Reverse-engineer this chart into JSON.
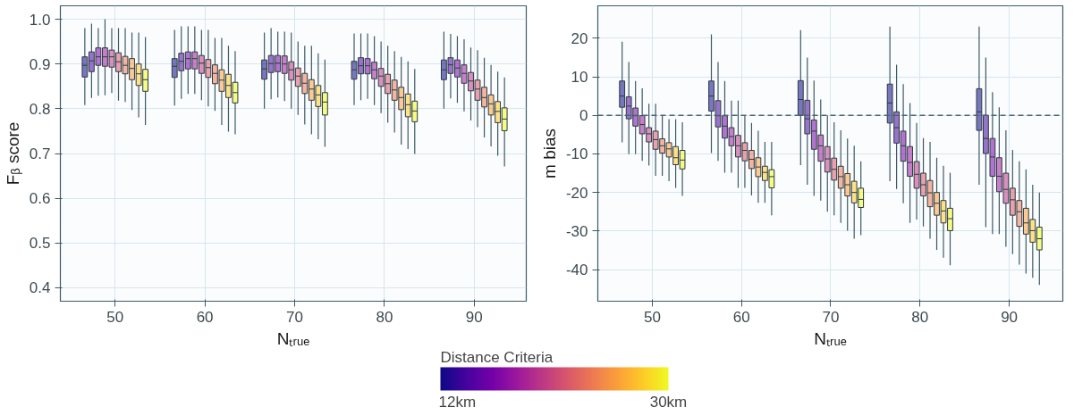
{
  "chart_data": [
    {
      "type": "box",
      "xlabel": "Nₜᵣᵤₑ",
      "ylabel": "Fᵦ score",
      "xlim": [
        43.9,
        95.8
      ],
      "ylim": [
        0.37,
        1.03
      ],
      "xticks": [
        50,
        60,
        70,
        80,
        90
      ],
      "yticks": [
        0.4,
        0.5,
        0.6,
        0.7,
        0.8,
        0.9,
        {
          "value": 1,
          "label": "1.0"
        }
      ],
      "grid": true,
      "clabel": "Distance Criteria",
      "clim": [
        12,
        30
      ],
      "cticks": [
        {
          "value": 12,
          "label": "12km"
        },
        {
          "value": 30,
          "label": "30km"
        }
      ],
      "series": [
        {
          "color": "#0d0887",
          "x": [
            50,
            60,
            70,
            80,
            90
          ],
          "boxes": [
            {
              "low": 0.808,
              "q1": 0.871,
              "median": 0.897,
              "q3": 0.916,
              "high": 0.98
            },
            {
              "low": 0.807,
              "q1": 0.87,
              "median": 0.895,
              "q3": 0.912,
              "high": 0.976
            },
            {
              "low": 0.8,
              "q1": 0.866,
              "median": 0.889,
              "q3": 0.909,
              "high": 0.97
            },
            {
              "low": 0.808,
              "q1": 0.866,
              "median": 0.887,
              "q3": 0.906,
              "high": 0.968
            },
            {
              "low": 0.8,
              "q1": 0.865,
              "median": 0.887,
              "q3": 0.909,
              "high": 0.972
            }
          ]
        },
        {
          "color": "#46039f",
          "x": [
            50,
            60,
            70,
            80,
            90
          ],
          "boxes": [
            {
              "low": 0.824,
              "q1": 0.883,
              "median": 0.907,
              "q3": 0.927,
              "high": 0.99
            },
            {
              "low": 0.822,
              "q1": 0.885,
              "median": 0.906,
              "q3": 0.924,
              "high": 0.984
            },
            {
              "low": 0.821,
              "q1": 0.881,
              "median": 0.901,
              "q3": 0.919,
              "high": 0.98
            },
            {
              "low": 0.819,
              "q1": 0.878,
              "median": 0.896,
              "q3": 0.914,
              "high": 0.968
            },
            {
              "low": 0.823,
              "q1": 0.879,
              "median": 0.898,
              "q3": 0.914,
              "high": 0.967
            }
          ]
        },
        {
          "color": "#7201a8",
          "x": [
            50,
            60,
            70,
            80,
            90
          ],
          "boxes": [
            {
              "low": 0.829,
              "q1": 0.897,
              "median": 0.916,
              "q3": 0.936,
              "high": 0.98
            },
            {
              "low": 0.833,
              "q1": 0.889,
              "median": 0.912,
              "q3": 0.927,
              "high": 0.984
            },
            {
              "low": 0.825,
              "q1": 0.883,
              "median": 0.902,
              "q3": 0.919,
              "high": 0.972
            },
            {
              "low": 0.822,
              "q1": 0.878,
              "median": 0.896,
              "q3": 0.912,
              "high": 0.968
            },
            {
              "low": 0.813,
              "q1": 0.871,
              "median": 0.891,
              "q3": 0.909,
              "high": 0.962
            }
          ]
        },
        {
          "color": "#9c179e",
          "x": [
            50,
            60,
            70,
            80,
            90
          ],
          "boxes": [
            {
              "low": 0.83,
              "q1": 0.895,
              "median": 0.916,
              "q3": 0.936,
              "high": 1.0
            },
            {
              "low": 0.833,
              "q1": 0.889,
              "median": 0.912,
              "q3": 0.927,
              "high": 0.984
            },
            {
              "low": 0.817,
              "q1": 0.879,
              "median": 0.9,
              "q3": 0.918,
              "high": 0.972
            },
            {
              "low": 0.808,
              "q1": 0.867,
              "median": 0.887,
              "q3": 0.904,
              "high": 0.962
            },
            {
              "low": 0.794,
              "q1": 0.857,
              "median": 0.879,
              "q3": 0.898,
              "high": 0.955
            }
          ]
        },
        {
          "color": "#bd3786",
          "x": [
            50,
            60,
            70,
            80,
            90
          ],
          "boxes": [
            {
              "low": 0.835,
              "q1": 0.893,
              "median": 0.916,
              "q3": 0.931,
              "high": 0.98
            },
            {
              "low": 0.819,
              "q1": 0.879,
              "median": 0.902,
              "q3": 0.919,
              "high": 0.976
            },
            {
              "low": 0.8,
              "q1": 0.864,
              "median": 0.887,
              "q3": 0.905,
              "high": 0.97
            },
            {
              "low": 0.79,
              "q1": 0.85,
              "median": 0.873,
              "q3": 0.89,
              "high": 0.95
            },
            {
              "low": 0.774,
              "q1": 0.84,
              "median": 0.862,
              "q3": 0.881,
              "high": 0.937
            }
          ]
        },
        {
          "color": "#d8576b",
          "x": [
            50,
            60,
            70,
            80,
            90
          ],
          "boxes": [
            {
              "low": 0.818,
              "q1": 0.883,
              "median": 0.905,
              "q3": 0.925,
              "high": 0.98
            },
            {
              "low": 0.805,
              "q1": 0.87,
              "median": 0.892,
              "q3": 0.91,
              "high": 0.976
            },
            {
              "low": 0.786,
              "q1": 0.85,
              "median": 0.873,
              "q3": 0.891,
              "high": 0.95
            },
            {
              "low": 0.769,
              "q1": 0.834,
              "median": 0.856,
              "q3": 0.877,
              "high": 0.941
            },
            {
              "low": 0.759,
              "q1": 0.819,
              "median": 0.844,
              "q3": 0.864,
              "high": 0.931
            }
          ]
        },
        {
          "color": "#ed7953",
          "x": [
            50,
            60,
            70,
            80,
            90
          ],
          "boxes": [
            {
              "low": 0.815,
              "q1": 0.878,
              "median": 0.897,
              "q3": 0.917,
              "high": 0.98
            },
            {
              "low": 0.795,
              "q1": 0.856,
              "median": 0.879,
              "q3": 0.898,
              "high": 0.958
            },
            {
              "low": 0.765,
              "q1": 0.834,
              "median": 0.857,
              "q3": 0.879,
              "high": 0.941
            },
            {
              "low": 0.747,
              "q1": 0.819,
              "median": 0.842,
              "q3": 0.864,
              "high": 0.929
            },
            {
              "low": 0.736,
              "q1": 0.804,
              "median": 0.825,
              "q3": 0.848,
              "high": 0.914
            }
          ]
        },
        {
          "color": "#fb9f3a",
          "x": [
            50,
            60,
            70,
            80,
            90
          ],
          "boxes": [
            {
              "low": 0.797,
              "q1": 0.865,
              "median": 0.89,
              "q3": 0.912,
              "high": 0.97
            },
            {
              "low": 0.764,
              "q1": 0.839,
              "median": 0.864,
              "q3": 0.887,
              "high": 0.958
            },
            {
              "low": 0.743,
              "q1": 0.819,
              "median": 0.844,
              "q3": 0.865,
              "high": 0.941
            },
            {
              "low": 0.72,
              "q1": 0.798,
              "median": 0.825,
              "q3": 0.848,
              "high": 0.916
            },
            {
              "low": 0.716,
              "q1": 0.786,
              "median": 0.811,
              "q3": 0.831,
              "high": 0.898
            }
          ]
        },
        {
          "color": "#fdca26",
          "x": [
            50,
            60,
            70,
            80,
            90
          ],
          "boxes": [
            {
              "low": 0.781,
              "q1": 0.852,
              "median": 0.878,
              "q3": 0.9,
              "high": 0.97
            },
            {
              "low": 0.749,
              "q1": 0.825,
              "median": 0.852,
              "q3": 0.877,
              "high": 0.941
            },
            {
              "low": 0.732,
              "q1": 0.805,
              "median": 0.831,
              "q3": 0.852,
              "high": 0.924
            },
            {
              "low": 0.71,
              "q1": 0.782,
              "median": 0.809,
              "q3": 0.833,
              "high": 0.906
            },
            {
              "low": 0.695,
              "q1": 0.769,
              "median": 0.794,
              "q3": 0.816,
              "high": 0.883
            }
          ]
        },
        {
          "color": "#f0f921",
          "x": [
            50,
            60,
            70,
            80,
            90
          ],
          "boxes": [
            {
              "low": 0.764,
              "q1": 0.839,
              "median": 0.865,
              "q3": 0.888,
              "high": 0.96
            },
            {
              "low": 0.743,
              "q1": 0.813,
              "median": 0.836,
              "q3": 0.859,
              "high": 0.929
            },
            {
              "low": 0.715,
              "q1": 0.786,
              "median": 0.815,
              "q3": 0.836,
              "high": 0.91
            },
            {
              "low": 0.699,
              "q1": 0.771,
              "median": 0.795,
              "q3": 0.817,
              "high": 0.889
            },
            {
              "low": 0.671,
              "q1": 0.751,
              "median": 0.777,
              "q3": 0.802,
              "high": 0.87
            }
          ]
        }
      ]
    },
    {
      "type": "box",
      "xlabel": "Nₜᵣᵤₑ",
      "ylabel": "m bias",
      "xlim": [
        43.9,
        96.0
      ],
      "ylim": [
        -48.2,
        28.4
      ],
      "xticks": [
        50,
        60,
        70,
        80,
        90
      ],
      "yticks": [
        -40,
        -30,
        -20,
        -10,
        0,
        10,
        20
      ],
      "grid": true,
      "ref_lines": [
        {
          "axis": "y",
          "value": 0,
          "color": "#4a6470",
          "line_style": "dashed"
        }
      ],
      "series": [
        {
          "color": "#0d0887",
          "x": [
            50,
            60,
            70,
            80,
            90
          ],
          "boxes": [
            {
              "low": -7.0,
              "q1": 2.1,
              "median": 5.0,
              "q3": 8.9,
              "high": 19.1
            },
            {
              "low": -9.8,
              "q1": 1.1,
              "median": 5.0,
              "q3": 8.9,
              "high": 21.0
            },
            {
              "low": -12.9,
              "q1": 0,
              "median": 4.1,
              "q3": 9.0,
              "high": 22.1
            },
            {
              "low": -17.1,
              "q1": -2.0,
              "median": 3.2,
              "q3": 8.1,
              "high": 23.0
            },
            {
              "low": -18.0,
              "q1": -3.9,
              "median": 0.9,
              "q3": 6.9,
              "high": 23.0
            }
          ]
        },
        {
          "color": "#46039f",
          "x": [
            50,
            60,
            70,
            80,
            90
          ],
          "boxes": [
            {
              "low": -10.1,
              "q1": -0.9,
              "median": 2.4,
              "q3": 4.8,
              "high": 13.8
            },
            {
              "low": -11.8,
              "q1": -3.0,
              "median": -0.1,
              "q3": 3.8,
              "high": 13.8
            },
            {
              "low": -18.0,
              "q1": -4.8,
              "median": -0.9,
              "q3": 3.9,
              "high": 15.0
            },
            {
              "low": -19.1,
              "q1": -7.2,
              "median": -3.2,
              "q3": 0.9,
              "high": 13.1
            },
            {
              "low": -29.0,
              "q1": -9.9,
              "median": -6.0,
              "q3": 0,
              "high": 15.0
            }
          ]
        },
        {
          "color": "#7201a8",
          "x": [
            50,
            60,
            70,
            80,
            90
          ],
          "boxes": [
            {
              "low": -10.1,
              "q1": -2.8,
              "median": -0.1,
              "q3": 1.9,
              "high": 8.9
            },
            {
              "low": -14.9,
              "q1": -5.9,
              "median": -2.8,
              "q3": -0.1,
              "high": 8.9
            },
            {
              "low": -20.9,
              "q1": -8.8,
              "median": -4.1,
              "q3": -1.2,
              "high": 9.0
            },
            {
              "low": -22.8,
              "q1": -11.9,
              "median": -7.9,
              "q3": -4.1,
              "high": 8.1
            },
            {
              "low": -30.8,
              "q1": -15.8,
              "median": -10.8,
              "q3": -6.0,
              "high": 6.0
            }
          ]
        },
        {
          "color": "#9c179e",
          "x": [
            50,
            60,
            70,
            80,
            90
          ],
          "boxes": [
            {
              "low": -11.8,
              "q1": -4.8,
              "median": -2.4,
              "q3": -0.1,
              "high": 7.0
            },
            {
              "low": -14.9,
              "q1": -7.9,
              "median": -5.5,
              "q3": -3.2,
              "high": 3.8
            },
            {
              "low": -22.1,
              "q1": -11.9,
              "median": -7.9,
              "q3": -5.1,
              "high": 4.1
            },
            {
              "low": -27.9,
              "q1": -15.8,
              "median": -12.2,
              "q3": -8.1,
              "high": 3.2
            },
            {
              "low": -30.8,
              "q1": -19.8,
              "median": -15.8,
              "q3": -11.0,
              "high": 2.1
            }
          ]
        },
        {
          "color": "#bd3786",
          "x": [
            50,
            60,
            70,
            80,
            90
          ],
          "boxes": [
            {
              "low": -13.0,
              "q1": -6.9,
              "median": -4.8,
              "q3": -3.2,
              "high": 3.0
            },
            {
              "low": -18.8,
              "q1": -10.8,
              "median": -7.9,
              "q3": -5.2,
              "high": 3.8
            },
            {
              "low": -25.0,
              "q1": -14.7,
              "median": -11.3,
              "q3": -8.1,
              "high": 0
            },
            {
              "low": -27.0,
              "q1": -18.9,
              "median": -15.3,
              "q3": -12.0,
              "high": -2.0
            },
            {
              "low": -34.1,
              "q1": -22.8,
              "median": -19.2,
              "q3": -15.0,
              "high": -3.9
            }
          ]
        },
        {
          "color": "#d8576b",
          "x": [
            50,
            60,
            70,
            80,
            90
          ],
          "boxes": [
            {
              "low": -15.7,
              "q1": -8.8,
              "median": -6.3,
              "q3": -4.1,
              "high": 3.0
            },
            {
              "low": -18.8,
              "q1": -11.8,
              "median": -9.1,
              "q3": -7.1,
              "high": -0.1
            },
            {
              "low": -25.9,
              "q1": -16.8,
              "median": -14.0,
              "q3": -11.1,
              "high": -1.8
            },
            {
              "low": -28.8,
              "q1": -20.9,
              "median": -18.0,
              "q3": -15.0,
              "high": -5.9
            },
            {
              "low": -36.0,
              "q1": -25.9,
              "median": -21.9,
              "q3": -18.9,
              "high": -9.0
            }
          ]
        },
        {
          "color": "#ed7953",
          "x": [
            50,
            60,
            70,
            80,
            90
          ],
          "boxes": [
            {
              "low": -15.7,
              "q1": -9.8,
              "median": -7.9,
              "q3": -6.1,
              "high": -0.1
            },
            {
              "low": -20.8,
              "q1": -13.8,
              "median": -11.4,
              "q3": -9.1,
              "high": -2.0
            },
            {
              "low": -27.9,
              "q1": -18.9,
              "median": -15.9,
              "q3": -13.2,
              "high": -3.9
            },
            {
              "low": -32.0,
              "q1": -23.7,
              "median": -20.1,
              "q3": -16.9,
              "high": -6.9
            },
            {
              "low": -38.7,
              "q1": -28.8,
              "median": -25.0,
              "q3": -22.1,
              "high": -11.9
            }
          ]
        },
        {
          "color": "#fb9f3a",
          "x": [
            50,
            60,
            70,
            80,
            90
          ],
          "boxes": [
            {
              "low": -17.1,
              "q1": -10.8,
              "median": -8.7,
              "q3": -7.1,
              "high": -1.0
            },
            {
              "low": -22.7,
              "q1": -15.9,
              "median": -13.4,
              "q3": -11.0,
              "high": -4.0
            },
            {
              "low": -29.9,
              "q1": -20.9,
              "median": -18.0,
              "q3": -15.1,
              "high": -6.0
            },
            {
              "low": -34.9,
              "q1": -25.9,
              "median": -22.8,
              "q3": -20.0,
              "high": -11.0
            },
            {
              "low": -41.0,
              "q1": -30.8,
              "median": -27.9,
              "q3": -24.1,
              "high": -14.0
            }
          ]
        },
        {
          "color": "#fdca26",
          "x": [
            50,
            60,
            70,
            80,
            90
          ],
          "boxes": [
            {
              "low": -18.8,
              "q1": -12.8,
              "median": -11.0,
              "q3": -8.1,
              "high": -1.0
            },
            {
              "low": -22.7,
              "q1": -16.9,
              "median": -14.8,
              "q3": -13.2,
              "high": -6.9
            },
            {
              "low": -32.0,
              "q1": -22.7,
              "median": -20.0,
              "q3": -17.1,
              "high": -7.9
            },
            {
              "low": -36.9,
              "q1": -27.9,
              "median": -24.8,
              "q3": -22.1,
              "high": -13.1
            },
            {
              "low": -42.1,
              "q1": -32.9,
              "median": -29.9,
              "q3": -27.0,
              "high": -18.0
            }
          ]
        },
        {
          "color": "#f0f921",
          "x": [
            50,
            60,
            70,
            80,
            90
          ],
          "boxes": [
            {
              "low": -20.9,
              "q1": -13.9,
              "median": -11.6,
              "q3": -9.1,
              "high": -1.8
            },
            {
              "low": -25.9,
              "q1": -18.8,
              "median": -15.9,
              "q3": -14.1,
              "high": -6.9
            },
            {
              "low": -31.1,
              "q1": -23.9,
              "median": -21.8,
              "q3": -18.9,
              "high": -11.9
            },
            {
              "low": -38.9,
              "q1": -29.9,
              "median": -26.8,
              "q3": -24.1,
              "high": -14.9
            },
            {
              "low": -44.0,
              "q1": -34.9,
              "median": -32.0,
              "q3": -29.0,
              "high": -20.0
            }
          ]
        }
      ]
    }
  ]
}
